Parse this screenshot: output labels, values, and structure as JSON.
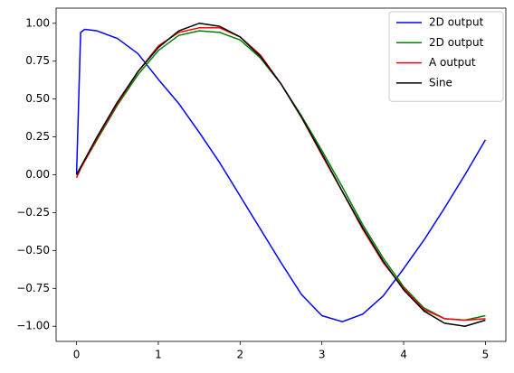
{
  "chart_data": {
    "type": "line",
    "x": [
      0,
      0.05,
      0.1,
      0.25,
      0.5,
      0.75,
      1.0,
      1.25,
      1.5,
      1.75,
      2.0,
      2.25,
      2.5,
      2.75,
      3.0,
      3.25,
      3.5,
      3.75,
      4.0,
      4.25,
      4.5,
      4.75,
      5.0
    ],
    "series": [
      {
        "name": "2D output",
        "color": "#0000ff",
        "values": [
          0,
          0.94,
          0.96,
          0.95,
          0.9,
          0.8,
          0.63,
          0.47,
          0.28,
          0.08,
          -0.14,
          -0.36,
          -0.58,
          -0.79,
          -0.93,
          -0.97,
          -0.92,
          -0.8,
          -0.62,
          -0.43,
          -0.22,
          0.0,
          0.23
        ]
      },
      {
        "name": "2D output",
        "color": "#008000",
        "values": [
          0,
          0.05,
          0.09,
          0.23,
          0.46,
          0.66,
          0.82,
          0.92,
          0.95,
          0.94,
          0.89,
          0.77,
          0.6,
          0.39,
          0.16,
          -0.08,
          -0.33,
          -0.55,
          -0.74,
          -0.88,
          -0.95,
          -0.96,
          -0.93
        ]
      },
      {
        "name": "A output",
        "color": "#ff0000",
        "values": [
          -0.02,
          0.04,
          0.09,
          0.24,
          0.47,
          0.68,
          0.85,
          0.94,
          0.97,
          0.97,
          0.91,
          0.79,
          0.6,
          0.38,
          0.13,
          -0.11,
          -0.36,
          -0.58,
          -0.75,
          -0.89,
          -0.95,
          -0.96,
          -0.95
        ]
      },
      {
        "name": "Sine",
        "color": "#000000",
        "values": [
          0,
          0.05,
          0.1,
          0.25,
          0.48,
          0.68,
          0.84,
          0.95,
          1.0,
          0.98,
          0.91,
          0.78,
          0.6,
          0.38,
          0.14,
          -0.11,
          -0.35,
          -0.57,
          -0.76,
          -0.9,
          -0.98,
          -1.0,
          -0.96
        ]
      }
    ],
    "xlim": [
      -0.25,
      5.25
    ],
    "xticks": [
      0,
      1,
      2,
      3,
      4,
      5
    ],
    "ylim": [
      -1.1,
      1.1
    ],
    "yticks": [
      {
        "value": -1,
        "label": "−1.00"
      },
      {
        "value": -0.75,
        "label": "−0.75"
      },
      {
        "value": -0.5,
        "label": "−0.50"
      },
      {
        "value": -0.25,
        "label": "−0.25"
      },
      {
        "value": 0,
        "label": "0.00"
      },
      {
        "value": 0.25,
        "label": "0.25"
      },
      {
        "value": 0.5,
        "label": "0.50"
      },
      {
        "value": 0.75,
        "label": "0.75"
      },
      {
        "value": 1,
        "label": "1.00"
      }
    ],
    "legend": "upper right",
    "grid": false
  }
}
